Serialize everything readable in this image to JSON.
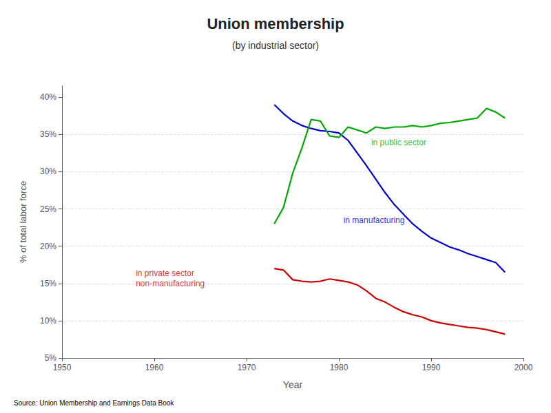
{
  "chart_data": {
    "type": "line",
    "title": "Union membership",
    "subtitle": "(by industrial sector)",
    "xlabel": "Year",
    "ylabel": "% of total labor force",
    "source": "Source: Union Membership and Earnings Data Book",
    "x": [
      1973,
      1974,
      1975,
      1976,
      1977,
      1978,
      1979,
      1980,
      1981,
      1982,
      1983,
      1984,
      1985,
      1986,
      1987,
      1988,
      1989,
      1990,
      1991,
      1992,
      1993,
      1994,
      1995,
      1996,
      1997,
      1998
    ],
    "series": [
      {
        "color": "#0000CC",
        "values": [
          0.39,
          0.378,
          0.368,
          0.362,
          0.358,
          0.355,
          0.354,
          0.352,
          0.342,
          0.325,
          0.308,
          0.29,
          0.272,
          0.256,
          0.243,
          0.23,
          0.22,
          0.211,
          0.205,
          0.199,
          0.195,
          0.19,
          0.186,
          0.182,
          0.178,
          0.165
        ]
      },
      {
        "color": "#00AA00",
        "values": [
          0.23,
          0.252,
          0.298,
          0.332,
          0.37,
          0.368,
          0.348,
          0.346,
          0.36,
          0.356,
          0.352,
          0.36,
          0.358,
          0.36,
          0.36,
          0.362,
          0.36,
          0.362,
          0.365,
          0.366,
          0.368,
          0.37,
          0.372,
          0.385,
          0.38,
          0.372
        ]
      },
      {
        "color": "#CC0000",
        "values": [
          0.17,
          0.168,
          0.155,
          0.153,
          0.152,
          0.153,
          0.156,
          0.154,
          0.152,
          0.148,
          0.14,
          0.13,
          0.125,
          0.118,
          0.112,
          0.108,
          0.105,
          0.1,
          0.097,
          0.095,
          0.093,
          0.091,
          0.09,
          0.088,
          0.085,
          0.082
        ]
      }
    ],
    "annotations": [
      {
        "text": "in public sector",
        "x": 1983.5,
        "y": 0.332,
        "color": "#00AA00"
      },
      {
        "text": "in manufacturing",
        "x": 1980.5,
        "y": 0.228,
        "color": "#0000CC"
      },
      {
        "text": "in private sector\nnon-manufacturing",
        "x": 1958.0,
        "y": 0.143,
        "color": "#CC0000"
      }
    ],
    "xlim": [
      1950,
      2000
    ],
    "ylim": [
      0.05,
      0.415
    ],
    "xticks": [
      1950,
      1960,
      1970,
      1980,
      1990,
      2000
    ],
    "yticks": [
      {
        "value": 0.05,
        "label": "5%"
      },
      {
        "value": 0.1,
        "label": "10%"
      },
      {
        "value": 0.15,
        "label": "15%"
      },
      {
        "value": 0.2,
        "label": "20%"
      },
      {
        "value": 0.25,
        "label": "25%"
      },
      {
        "value": 0.3,
        "label": "30%"
      },
      {
        "value": 0.35,
        "label": "35%"
      },
      {
        "value": 0.4,
        "label": "40%"
      }
    ],
    "grid": true
  }
}
